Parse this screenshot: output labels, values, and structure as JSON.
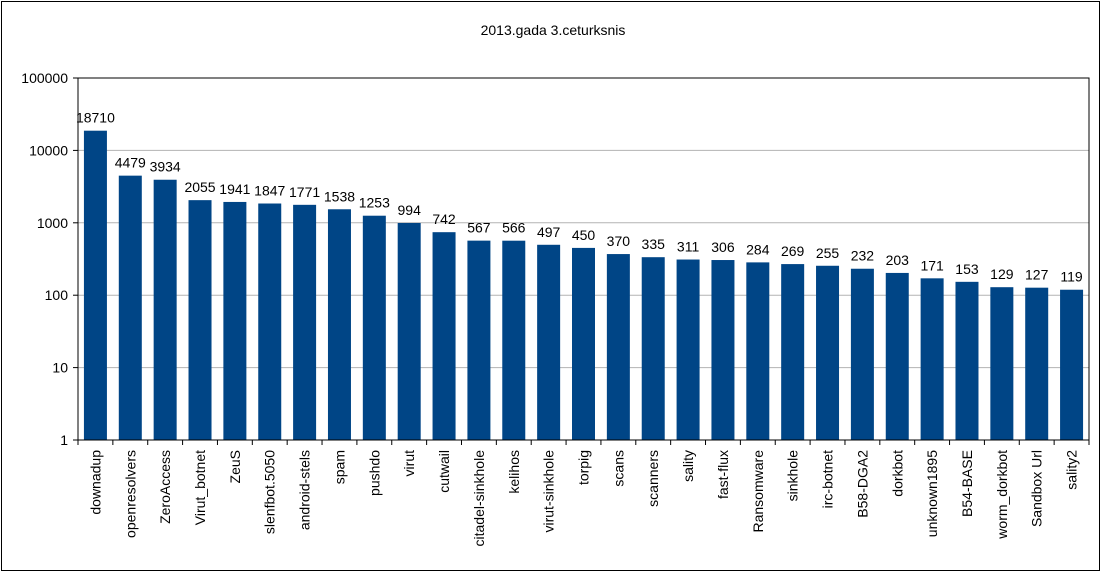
{
  "chart_data": {
    "type": "bar",
    "title": "2013.gada 3.ceturksnis",
    "xlabel": "",
    "ylabel": "",
    "yscale": "log",
    "ylim": [
      1,
      100000
    ],
    "y_ticks": [
      "1",
      "10",
      "100",
      "1000",
      "10000",
      "100000"
    ],
    "grid": true,
    "legend": "none",
    "bar_color": "#004586",
    "categories": [
      "downadup",
      "openresolvers",
      "ZeroAccess",
      "Virut_botnet",
      "ZeuS",
      "slenfbot.5050",
      "android-stels",
      "spam",
      "pushdo",
      "virut",
      "cutwail",
      "citadel-sinkhole",
      "kelihos",
      "virut-sinkhole",
      "torpig",
      "scans",
      "scanners",
      "sality",
      "fast-flux",
      "Ransomware",
      "sinkhole",
      "irc-botnet",
      "B58-DGA2",
      "dorkbot",
      "unknown1895",
      "B54-BASE",
      "worm_dorkbot",
      "Sandbox Url",
      "sality2"
    ],
    "values": [
      18710,
      4479,
      3934,
      2055,
      1941,
      1847,
      1771,
      1538,
      1253,
      994,
      742,
      567,
      566,
      497,
      450,
      370,
      335,
      311,
      306,
      284,
      269,
      255,
      232,
      203,
      171,
      153,
      129,
      127,
      119
    ],
    "value_labels": [
      "18710",
      "4479",
      "3934",
      "2055",
      "1941",
      "1847",
      "1771",
      "1538",
      "1253",
      "994",
      "742",
      "567",
      "566",
      "497",
      "450",
      "370",
      "335",
      "311",
      "306",
      "284",
      "269",
      "255",
      "232",
      "203",
      "171",
      "153",
      "129",
      "127",
      "119"
    ]
  }
}
